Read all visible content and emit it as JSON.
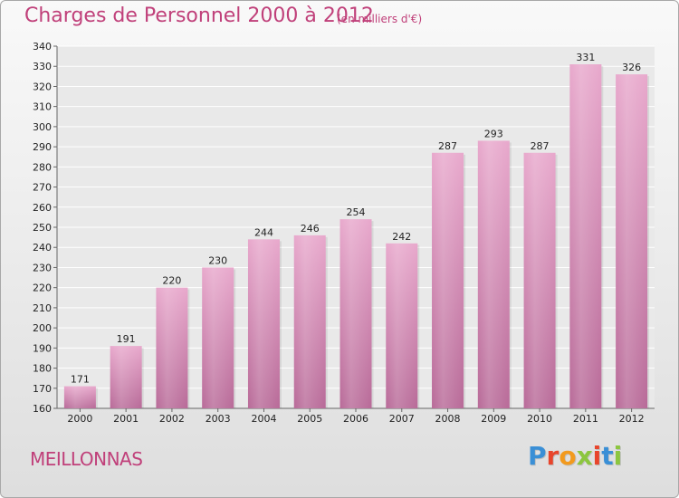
{
  "header": {
    "title": "Charges de Personnel 2000 à 2012",
    "subtitle": "(en milliers d'€)"
  },
  "footer": {
    "commune": "MEILLONNAS",
    "logo_text": "Proxiti",
    "logo_colors": [
      "#3a8fd6",
      "#e8452c",
      "#f29a1e",
      "#8cc63f",
      "#e8452c",
      "#3a8fd6",
      "#8cc63f"
    ]
  },
  "colors": {
    "bar_top": "#e8a8cc",
    "bar_bottom": "#b86a98",
    "accent": "#c0407a"
  },
  "chart_data": {
    "type": "bar",
    "title": "Charges de Personnel 2000 à 2012",
    "subtitle": "(en milliers d'€)",
    "categories": [
      "2000",
      "2001",
      "2002",
      "2003",
      "2004",
      "2005",
      "2006",
      "2007",
      "2008",
      "2009",
      "2010",
      "2011",
      "2012"
    ],
    "values": [
      171,
      191,
      220,
      230,
      244,
      246,
      254,
      242,
      287,
      293,
      287,
      331,
      326
    ],
    "ylim": [
      160,
      340
    ],
    "yticks": [
      160,
      170,
      180,
      190,
      200,
      210,
      220,
      230,
      240,
      250,
      260,
      270,
      280,
      290,
      300,
      310,
      320,
      330,
      340
    ],
    "grid": true,
    "data_labels": true
  }
}
